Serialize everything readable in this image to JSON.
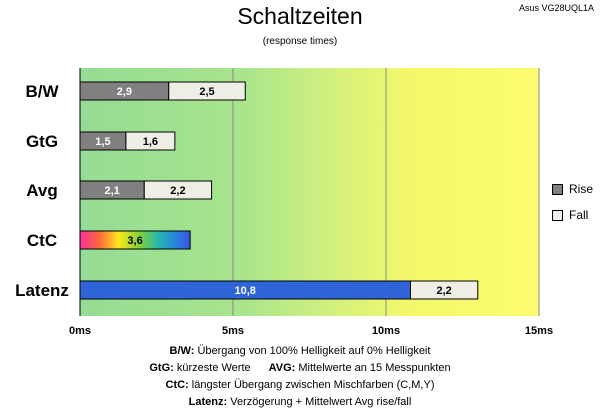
{
  "title": "Schaltzeiten",
  "subtitle": "(response times)",
  "device": "Asus VG28UQL1A",
  "legend": {
    "rise": "Rise",
    "fall": "Fall"
  },
  "colors": {
    "rise": "#808080",
    "fall": "#efeee6",
    "latenz": "#2f64d8",
    "border": "#000000"
  },
  "notes": {
    "bw_key": "B/W:",
    "bw_text": "Übergang von 100% Helligkeit auf 0% Helligkeit",
    "gtg_key": "GtG:",
    "gtg_text": "kürzeste Werte",
    "avg_key": "AVG:",
    "avg_text": "Mittelwerte an 15 Messpunkten",
    "ctc_key": "CtC:",
    "ctc_text": "längster Übergang zwischen Mischfarben (C,M,Y)",
    "lat_key": "Latenz:",
    "lat_text": "Verzögerung + Mittelwert Avg rise/fall"
  },
  "chart_data": {
    "type": "bar",
    "orientation": "horizontal",
    "stacked": true,
    "categories": [
      "B/W",
      "GtG",
      "Avg",
      "CtC",
      "Latenz"
    ],
    "series": [
      {
        "name": "Rise",
        "values": [
          2.9,
          1.5,
          2.1,
          3.6,
          10.8
        ]
      },
      {
        "name": "Fall",
        "values": [
          2.5,
          1.6,
          2.2,
          null,
          2.2
        ]
      }
    ],
    "x_ticks": [
      "0ms",
      "5ms",
      "10ms",
      "15ms"
    ],
    "x_tick_values": [
      0,
      5,
      10,
      15
    ],
    "xlim": [
      0,
      15
    ],
    "grid": true,
    "legend_position": "right"
  }
}
